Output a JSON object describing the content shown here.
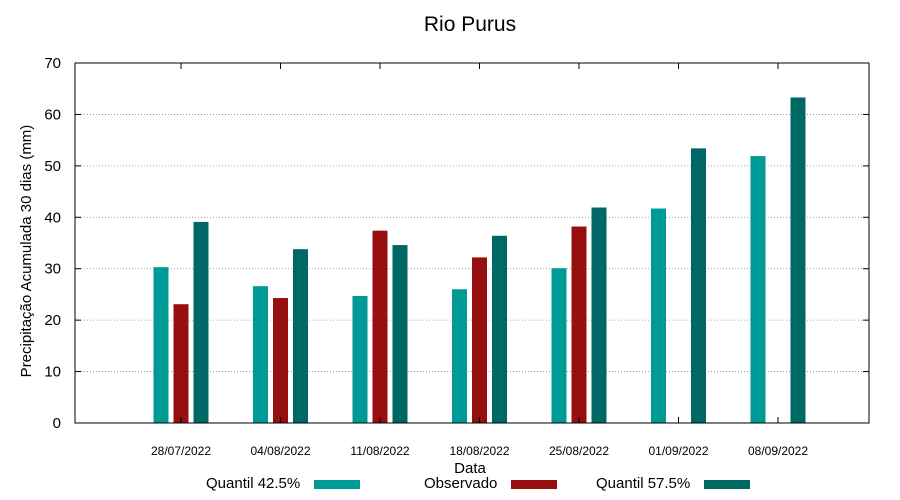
{
  "chart_data": {
    "type": "bar",
    "title": "Rio Purus",
    "xlabel": "Data",
    "ylabel": "Precipitação Acumulada 30 dias (mm)",
    "ylim": [
      0,
      70
    ],
    "yticks": [
      0,
      10,
      20,
      30,
      40,
      50,
      60,
      70
    ],
    "grid": true,
    "legend_position": "bottom",
    "categories": [
      "28/07/2022",
      "04/08/2022",
      "11/08/2022",
      "18/08/2022",
      "25/08/2022",
      "01/09/2022",
      "08/09/2022"
    ],
    "series": [
      {
        "name": "Quantil 42.5%",
        "color": "#009a96",
        "values": [
          30.3,
          26.6,
          24.7,
          26.0,
          30.1,
          41.7,
          51.9
        ]
      },
      {
        "name": "Observado",
        "color": "#980f0f",
        "values": [
          23.1,
          24.3,
          37.4,
          32.2,
          38.2,
          null,
          null
        ]
      },
      {
        "name": "Quantil 57.5%",
        "color": "#006864",
        "values": [
          39.1,
          33.8,
          34.6,
          36.4,
          41.9,
          53.4,
          63.3
        ]
      }
    ]
  }
}
